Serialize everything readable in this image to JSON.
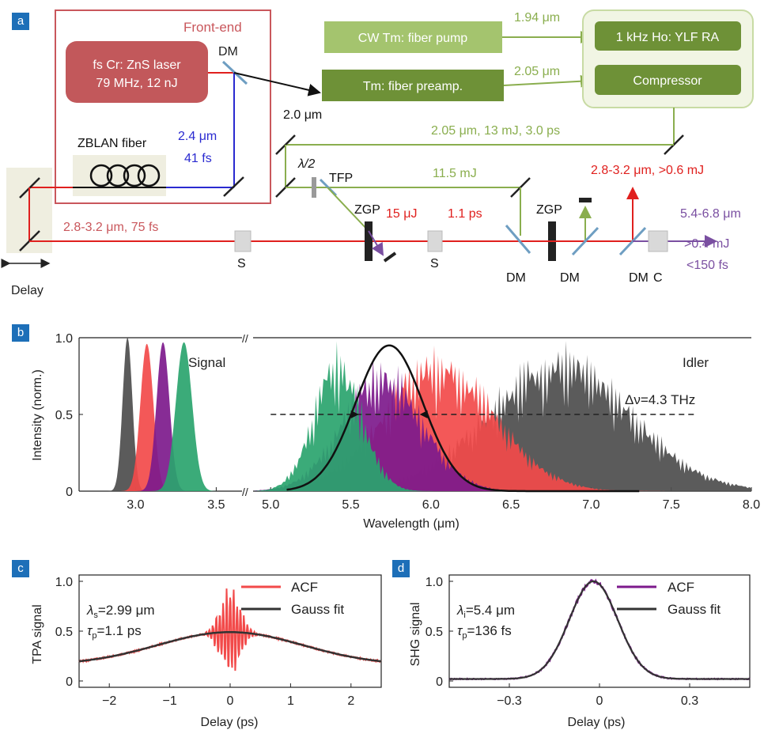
{
  "panels": {
    "a": "a",
    "b": "b",
    "c": "c",
    "d": "d"
  },
  "schematic": {
    "front_end": "Front-end",
    "laser_line1": "fs Cr: ZnS laser",
    "laser_line2": "79 MHz, 12 nJ",
    "dm": "DM",
    "zblan": "ZBLAN fiber",
    "wl_blue_1": "2.4 μm",
    "wl_blue_2": "41 fs",
    "wl_2um": "2.0 μm",
    "cw_pump": "CW Tm: fiber pump",
    "preamp": "Tm: fiber preamp.",
    "wl_194": "1.94 μm",
    "wl_205": "2.05 μm",
    "ra": "1 kHz Ho: YLF RA",
    "compressor": "Compressor",
    "pump_beam": "2.05 μm, 13 mJ, 3.0 ps",
    "half_wave": "λ/2",
    "tfp": "TFP",
    "e_115": "11.5 mJ",
    "idler_out_red": "2.8-3.2 μm, >0.6 mJ",
    "zgp": "ZGP",
    "e_15": "15 μJ",
    "t_11": "1.1 ps",
    "seed_beam": "2.8-3.2 μm, 75 fs",
    "s": "S",
    "c": "C",
    "out1": "5.4-6.8 μm",
    "out2": ">0.4 mJ",
    "out3": "<150 fs",
    "delay": "Delay"
  },
  "chart_data": [
    {
      "type": "area",
      "panel": "b",
      "xlabel": "Wavelength (μm)",
      "ylabel": "Intensity (norm.)",
      "annotations": [
        "Signal",
        "Idler",
        "Δν=4.3 THz"
      ],
      "x_ticks_left": [
        "3.0",
        "3.5"
      ],
      "x_ticks_right": [
        "5.0",
        "5.5",
        "6.0",
        "6.5",
        "7.0",
        "7.5",
        "8.0"
      ],
      "y_ticks": [
        "0",
        "0.5",
        "1.0"
      ],
      "xlim_left": [
        2.65,
        3.65
      ],
      "xlim_right": [
        4.9,
        8.0
      ],
      "ylim": [
        0,
        1.0
      ],
      "series": [
        {
          "region": "signal",
          "center": 2.95,
          "width": 0.03,
          "peak": 1.0,
          "color": "#4d4d4d"
        },
        {
          "region": "signal",
          "center": 3.07,
          "width": 0.04,
          "peak": 0.96,
          "color": "#f24a4a"
        },
        {
          "region": "signal",
          "center": 3.17,
          "width": 0.04,
          "peak": 0.97,
          "color": "#7d1a8c"
        },
        {
          "region": "signal",
          "center": 3.3,
          "width": 0.05,
          "peak": 0.97,
          "color": "#2aa46e"
        },
        {
          "region": "idler",
          "center": 6.8,
          "width": 0.45,
          "peak": 1.0,
          "color": "#4d4d4d"
        },
        {
          "region": "idler",
          "center": 6.05,
          "width": 0.35,
          "peak": 1.0,
          "color": "#f24a4a"
        },
        {
          "region": "idler",
          "center": 5.7,
          "width": 0.25,
          "peak": 0.9,
          "color": "#7d1a8c"
        },
        {
          "region": "idler",
          "center": 5.42,
          "width": 0.15,
          "peak": 0.98,
          "color": "#2aa46e"
        }
      ],
      "gauss_fit": {
        "center": 5.74,
        "width": 0.21,
        "peak": 0.95,
        "xrange": [
          5.1,
          7.3
        ]
      },
      "fwhm_arrow_y": 0.5
    },
    {
      "type": "line",
      "panel": "c",
      "xlabel": "Delay (ps)",
      "ylabel": "TPA signal",
      "xlim": [
        -2.5,
        2.5
      ],
      "ylim": [
        0,
        1.0
      ],
      "x_ticks": [
        "−2",
        "−1",
        "0",
        "1",
        "2"
      ],
      "y_ticks": [
        "0",
        "0.5",
        "1.0"
      ],
      "legend": [
        {
          "name": "ACF",
          "color": "#f24a4a"
        },
        {
          "name": "Gauss fit",
          "color": "#333333"
        }
      ],
      "legend_position": "top-right",
      "annot_lambda": "λ",
      "annot_lambda_sub": "s",
      "annot_lambda_val": "=2.99 μm",
      "annot_tau": "τ",
      "annot_tau_sub": "p",
      "annot_tau_val": "=1.1 ps",
      "baseline": 0.16,
      "peak_fit": 0.49,
      "fit_sigma_ps": 1.2
    },
    {
      "type": "line",
      "panel": "d",
      "xlabel": "Delay (ps)",
      "ylabel": "SHG signal",
      "xlim": [
        -0.5,
        0.5
      ],
      "ylim": [
        0,
        1.0
      ],
      "x_ticks": [
        "−0.3",
        "0",
        "0.3"
      ],
      "y_ticks": [
        "0",
        "0.5",
        "1.0"
      ],
      "legend": [
        {
          "name": "ACF",
          "color": "#7d1a8c"
        },
        {
          "name": "Gauss fit",
          "color": "#333333"
        }
      ],
      "legend_position": "top-right",
      "annot_lambda": "λ",
      "annot_lambda_sub": "i",
      "annot_lambda_val": "=5.4 μm",
      "annot_tau": "τ",
      "annot_tau_sub": "p",
      "annot_tau_val": "=136 fs",
      "baseline": 0.02,
      "center": -0.02,
      "fit_fwhm_ps": 0.19
    }
  ]
}
